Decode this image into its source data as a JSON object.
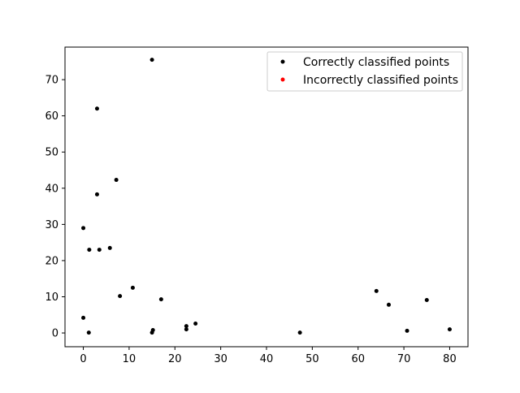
{
  "chart_data": {
    "type": "scatter",
    "title": "",
    "xlabel": "",
    "ylabel": "",
    "xlim": [
      -4,
      84
    ],
    "ylim": [
      -3.8,
      79
    ],
    "xticks": [
      0,
      10,
      20,
      30,
      40,
      50,
      60,
      70,
      80
    ],
    "yticks": [
      0,
      10,
      20,
      30,
      40,
      50,
      60,
      70
    ],
    "grid": false,
    "legend_position": "top-right",
    "series": [
      {
        "name": "Correctly classified points",
        "color": "#000000",
        "points": [
          {
            "x": 15.0,
            "y": 75.5
          },
          {
            "x": 3.0,
            "y": 62.0
          },
          {
            "x": 7.2,
            "y": 42.3
          },
          {
            "x": 3.0,
            "y": 38.3
          },
          {
            "x": 0.0,
            "y": 29.0
          },
          {
            "x": 1.3,
            "y": 23.0
          },
          {
            "x": 3.5,
            "y": 23.0
          },
          {
            "x": 5.8,
            "y": 23.5
          },
          {
            "x": 10.8,
            "y": 12.5
          },
          {
            "x": 8.0,
            "y": 10.2
          },
          {
            "x": 17.0,
            "y": 9.3
          },
          {
            "x": 0.0,
            "y": 4.2
          },
          {
            "x": 1.2,
            "y": 0.1
          },
          {
            "x": 15.2,
            "y": 0.8
          },
          {
            "x": 15.0,
            "y": 0.1
          },
          {
            "x": 22.5,
            "y": 1.9
          },
          {
            "x": 22.5,
            "y": 1.0
          },
          {
            "x": 24.5,
            "y": 2.6
          },
          {
            "x": 47.3,
            "y": 0.1
          },
          {
            "x": 64.0,
            "y": 11.6
          },
          {
            "x": 66.7,
            "y": 7.8
          },
          {
            "x": 70.7,
            "y": 0.6
          },
          {
            "x": 75.0,
            "y": 9.1
          },
          {
            "x": 80.0,
            "y": 1.0
          }
        ]
      },
      {
        "name": "Incorrectly classified points",
        "color": "#ff0000",
        "points": []
      }
    ]
  }
}
